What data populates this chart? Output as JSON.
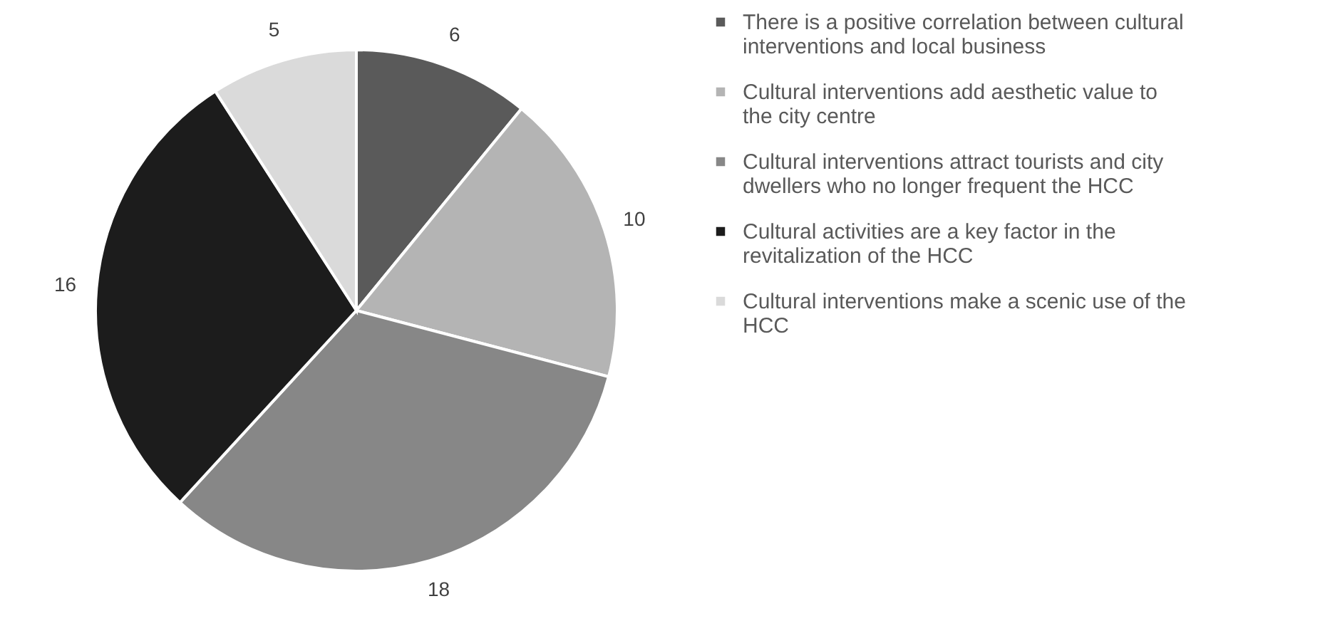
{
  "chart_data": {
    "type": "pie",
    "categories": [
      "There is a positive correlation between cultural interventions and local business",
      "Cultural interventions add aesthetic value to the city centre",
      "Cultural interventions attract tourists and city dwellers who no longer frequent the HCC",
      "Cultural activities are a key factor in the revitalization of the HCC",
      "Cultural interventions make a scenic use of the HCC"
    ],
    "values": [
      6,
      10,
      18,
      16,
      5
    ],
    "colors": [
      "#5a5a5a",
      "#b4b4b4",
      "#878787",
      "#1c1c1c",
      "#dadada"
    ],
    "data_labels": true,
    "legend": "right"
  }
}
